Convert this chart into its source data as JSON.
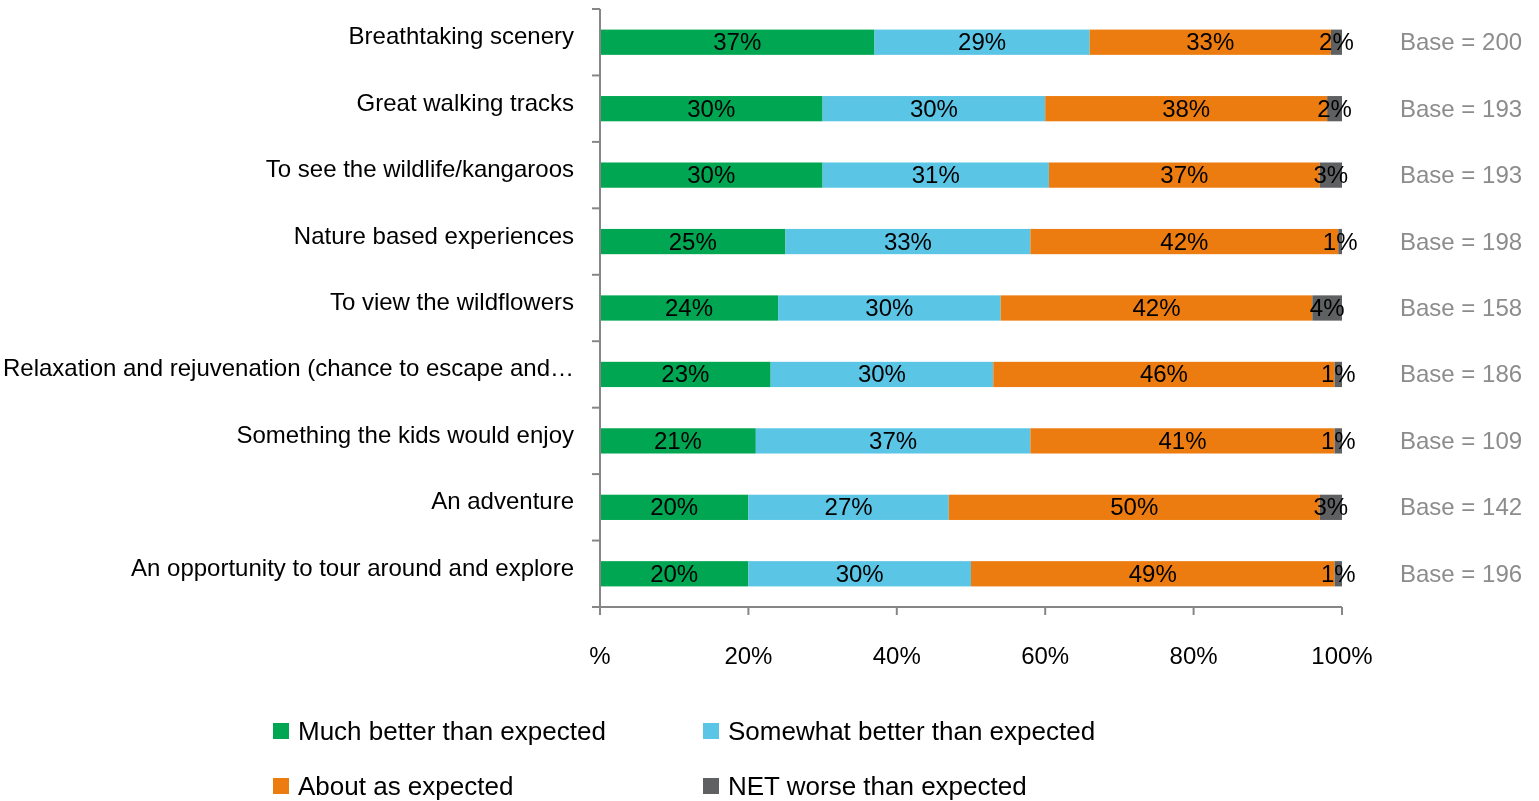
{
  "chart_data": {
    "type": "bar",
    "orientation": "horizontal",
    "stacked": true,
    "categories": [
      "Breathtaking scenery",
      "Great walking tracks",
      "To see the wildlife/kangaroos",
      "Nature based experiences",
      "To view the wildflowers",
      "Relaxation and rejuvenation (chance to escape and…",
      "Something the kids would enjoy",
      "An adventure",
      "An opportunity to tour around and explore"
    ],
    "series": [
      {
        "name": "Much better than expected",
        "color": "#00a651",
        "values": [
          37,
          30,
          30,
          25,
          24,
          23,
          21,
          20,
          20
        ],
        "value_labels": [
          "37%",
          "30%",
          "30%",
          "25%",
          "24%",
          "23%",
          "21%",
          "20%",
          "20%"
        ]
      },
      {
        "name": "Somewhat better than expected",
        "color": "#5bc5e6",
        "values": [
          29,
          30,
          30.5,
          33,
          30,
          30,
          37,
          27,
          30
        ],
        "value_labels": [
          "29%",
          "30%",
          "31%",
          "33%",
          "30%",
          "30%",
          "37%",
          "27%",
          "30%"
        ]
      },
      {
        "name": "About as expected",
        "color": "#ec7c0f",
        "values": [
          32.5,
          38,
          36.5,
          41.5,
          42,
          46,
          41,
          50,
          49
        ],
        "value_labels": [
          "33%",
          "38%",
          "37%",
          "42%",
          "42%",
          "46%",
          "41%",
          "50%",
          "49%"
        ]
      },
      {
        "name": "NET worse than expected",
        "color": "#5f6062",
        "values": [
          1.5,
          2,
          3,
          0.5,
          4,
          1,
          1,
          3,
          1
        ],
        "value_labels": [
          "2%",
          "2%",
          "3%",
          "1%",
          "4%",
          "1%",
          "1%",
          "3%",
          "1%"
        ]
      }
    ],
    "xlim": [
      0,
      100
    ],
    "xticks": [
      {
        "value": 0,
        "label": "%"
      },
      {
        "value": 20,
        "label": "20%"
      },
      {
        "value": 40,
        "label": "40%"
      },
      {
        "value": 60,
        "label": "60%"
      },
      {
        "value": 80,
        "label": "80%"
      },
      {
        "value": 100,
        "label": "100%"
      }
    ],
    "annotations": [
      "Base = 200",
      "Base = 193",
      "Base = 193",
      "Base = 198",
      "Base = 158",
      "Base = 186",
      "Base = 109",
      "Base = 142",
      "Base = 196"
    ],
    "legend": "bottom",
    "grid": false
  }
}
